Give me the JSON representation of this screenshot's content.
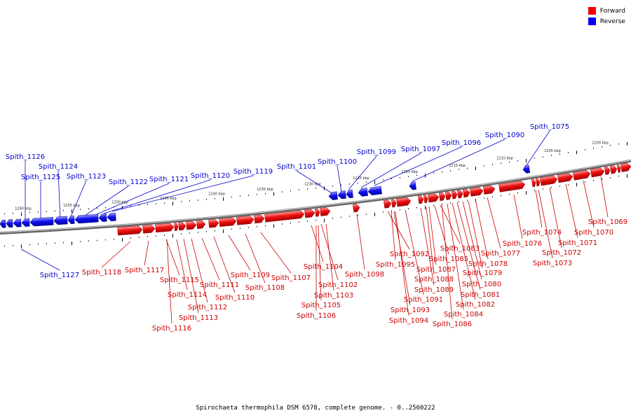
{
  "legend": {
    "forward_label": "Forward",
    "reverse_label": "Reverse",
    "forward_color": "#ee0000",
    "reverse_color": "#0000ee"
  },
  "caption": "Spirochaeta thermophila DSM 6578, complete genome. - 0..2560222",
  "ticks": [
    "1260 kbp",
    "1255 kbp",
    "1250 kbp",
    "1245 kbp",
    "1240 kbp",
    "1235 kbp",
    "1230 kbp",
    "1225 kbp",
    "1220 kbp",
    "1215 kbp",
    "1210 kbp",
    "1205 kbp",
    "1200 kbp"
  ],
  "genes": [
    {
      "id": "Spith_1126",
      "strand": "reverse"
    },
    {
      "id": "Spith_1125",
      "strand": "reverse"
    },
    {
      "id": "Spith_1124",
      "strand": "reverse"
    },
    {
      "id": "Spith_1123",
      "strand": "reverse"
    },
    {
      "id": "Spith_1122",
      "strand": "reverse"
    },
    {
      "id": "Spith_1121",
      "strand": "reverse"
    },
    {
      "id": "Spith_1120",
      "strand": "reverse"
    },
    {
      "id": "Spith_1119",
      "strand": "reverse"
    },
    {
      "id": "Spith_1101",
      "strand": "reverse"
    },
    {
      "id": "Spith_1100",
      "strand": "reverse"
    },
    {
      "id": "Spith_1099",
      "strand": "reverse"
    },
    {
      "id": "Spith_1097",
      "strand": "reverse"
    },
    {
      "id": "Spith_1096",
      "strand": "reverse"
    },
    {
      "id": "Spith_1090",
      "strand": "reverse"
    },
    {
      "id": "Spith_1075",
      "strand": "reverse"
    },
    {
      "id": "Spith_1127",
      "strand": "reverse"
    },
    {
      "id": "Spith_1118",
      "strand": "forward"
    },
    {
      "id": "Spith_1117",
      "strand": "forward"
    },
    {
      "id": "Spith_1115",
      "strand": "forward"
    },
    {
      "id": "Spith_1114",
      "strand": "forward"
    },
    {
      "id": "Spith_1116",
      "strand": "forward"
    },
    {
      "id": "Spith_1113",
      "strand": "forward"
    },
    {
      "id": "Spith_1112",
      "strand": "forward"
    },
    {
      "id": "Spith_1111",
      "strand": "forward"
    },
    {
      "id": "Spith_1110",
      "strand": "forward"
    },
    {
      "id": "Spith_1109",
      "strand": "forward"
    },
    {
      "id": "Spith_1108",
      "strand": "forward"
    },
    {
      "id": "Spith_1107",
      "strand": "forward"
    },
    {
      "id": "Spith_1104",
      "strand": "forward"
    },
    {
      "id": "Spith_1102",
      "strand": "forward"
    },
    {
      "id": "Spith_1103",
      "strand": "forward"
    },
    {
      "id": "Spith_1105",
      "strand": "forward"
    },
    {
      "id": "Spith_1106",
      "strand": "forward"
    },
    {
      "id": "Spith_1098",
      "strand": "forward"
    },
    {
      "id": "Spith_1092",
      "strand": "forward"
    },
    {
      "id": "Spith_1095",
      "strand": "forward"
    },
    {
      "id": "Spith_1093",
      "strand": "forward"
    },
    {
      "id": "Spith_1094",
      "strand": "forward"
    },
    {
      "id": "Spith_1091",
      "strand": "forward"
    },
    {
      "id": "Spith_1089",
      "strand": "forward"
    },
    {
      "id": "Spith_1088",
      "strand": "forward"
    },
    {
      "id": "Spith_1087",
      "strand": "forward"
    },
    {
      "id": "Spith_1085",
      "strand": "forward"
    },
    {
      "id": "Spith_1083",
      "strand": "forward"
    },
    {
      "id": "Spith_1086",
      "strand": "forward"
    },
    {
      "id": "Spith_1084",
      "strand": "forward"
    },
    {
      "id": "Spith_1082",
      "strand": "forward"
    },
    {
      "id": "Spith_1081",
      "strand": "forward"
    },
    {
      "id": "Spith_1080",
      "strand": "forward"
    },
    {
      "id": "Spith_1079",
      "strand": "forward"
    },
    {
      "id": "Spith_1078",
      "strand": "forward"
    },
    {
      "id": "Spith_1077",
      "strand": "forward"
    },
    {
      "id": "Spith_1076",
      "strand": "forward"
    },
    {
      "id": "Spith_1074",
      "strand": "forward"
    },
    {
      "id": "Spith_1073",
      "strand": "forward"
    },
    {
      "id": "Spith_1072",
      "strand": "forward"
    },
    {
      "id": "Spith_1071",
      "strand": "forward"
    },
    {
      "id": "Spith_1070",
      "strand": "forward"
    },
    {
      "id": "Spith_1069",
      "strand": "forward"
    }
  ]
}
